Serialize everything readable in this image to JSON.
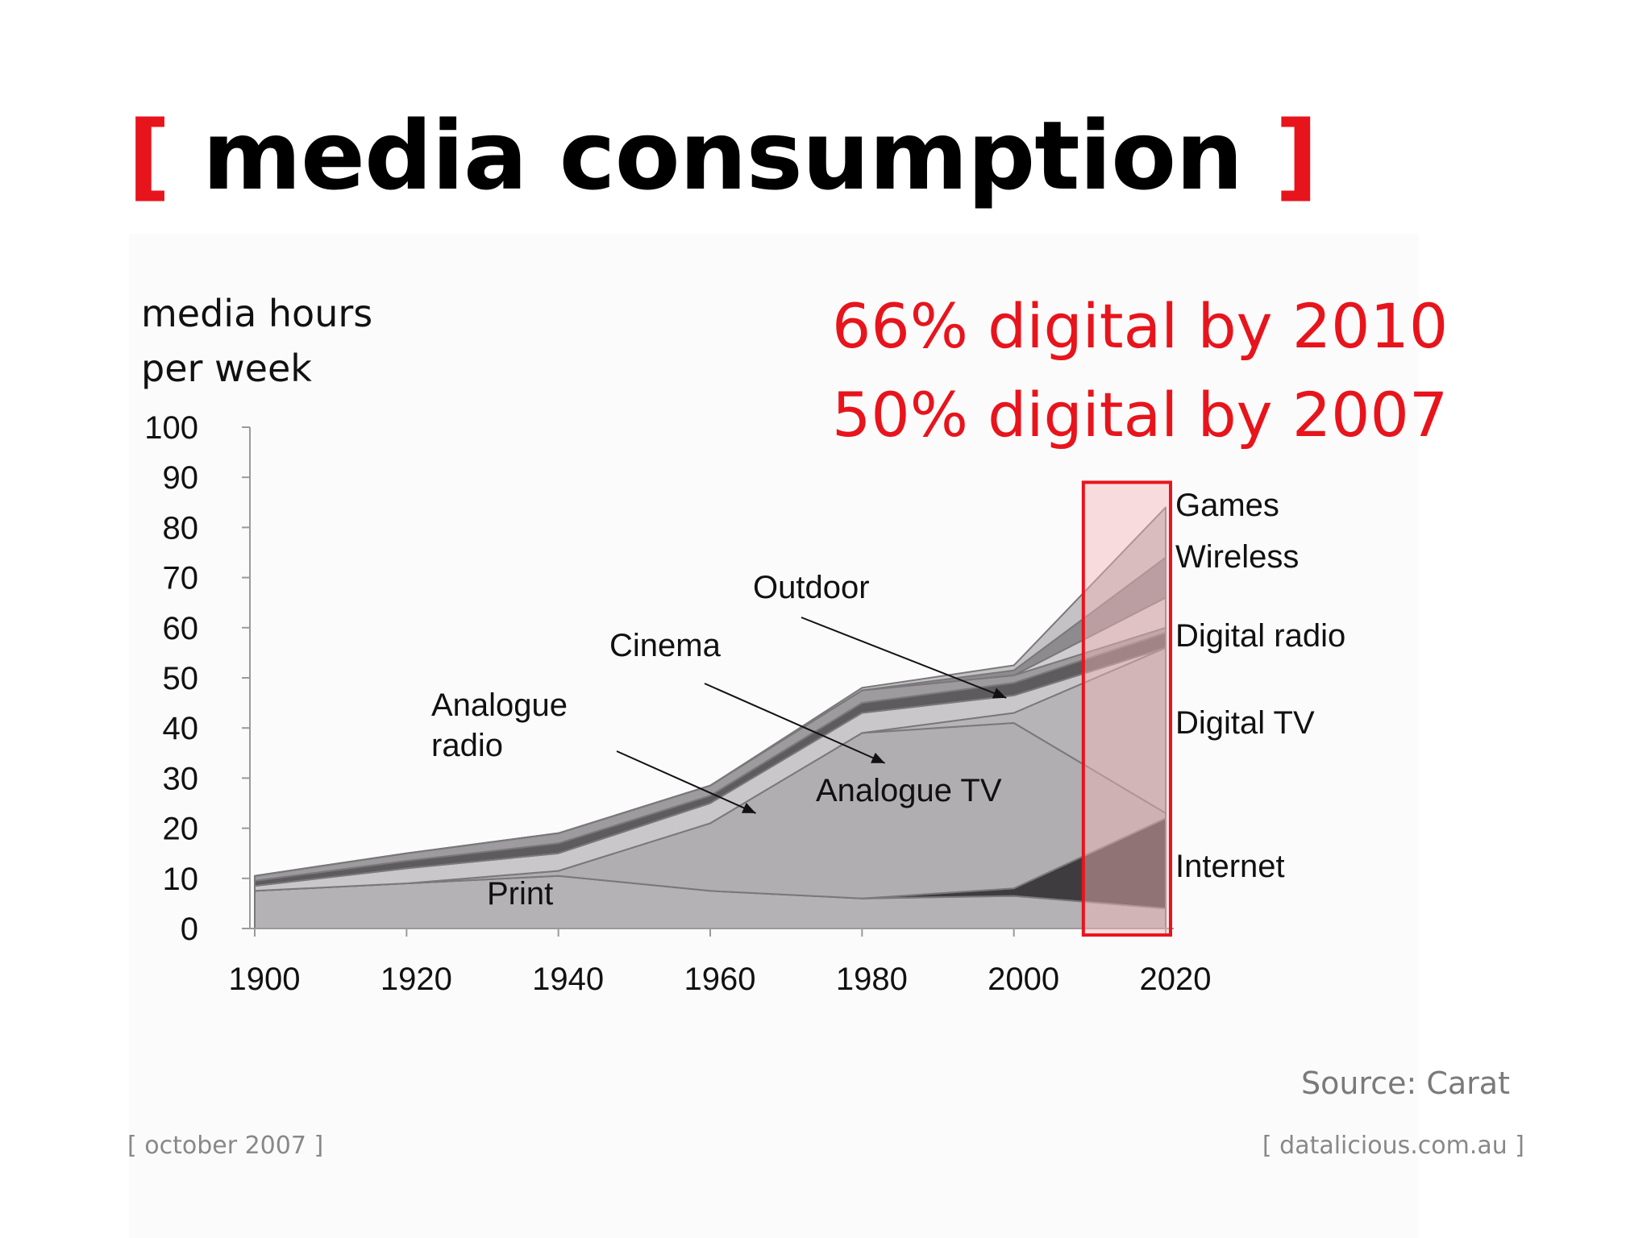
{
  "slide": {
    "title_open": "[",
    "title_text": " media consumption ",
    "title_close": "]",
    "ylabel_line1": "media hours",
    "ylabel_line2": "per week",
    "headline_1": "66% digital by 2010",
    "headline_2": "50% digital by 2007",
    "source": "Source: Carat",
    "footer_left": "[ october 2007 ]",
    "footer_right": "[ datalicious.com.au ]"
  },
  "colors": {
    "accent_red": "#e8141c",
    "highlight_fill": "#f4b6b8",
    "print": "#b4b2b4",
    "analogue_tv": "#b0aeb0",
    "analogue_radio": "#c9c7c9",
    "cinema": "#5d5b5e",
    "outdoor": "#9d9b9e",
    "internet": "#3e3c3f",
    "digital_tv": "#b6b4b6",
    "digital_radio": "#cfcdcf",
    "wireless": "#8d8b8e",
    "games": "#c4c2c4",
    "edge": "#7a787b"
  },
  "chart_data": {
    "type": "area",
    "stacked": true,
    "ylabel": "media hours per week",
    "xlabel": "",
    "x": [
      1900,
      1920,
      1940,
      1960,
      1980,
      2000,
      2020
    ],
    "xticks": [
      "1900",
      "1920",
      "1940",
      "1960",
      "1980",
      "2000",
      "2020"
    ],
    "yticks": [
      "0",
      "10",
      "20",
      "30",
      "40",
      "50",
      "60",
      "70",
      "80",
      "90",
      "100"
    ],
    "ylim": [
      0,
      100
    ],
    "xlim": [
      1900,
      2020
    ],
    "grid": false,
    "series": [
      {
        "name": "Print",
        "values": [
          7.5,
          9,
          10.5,
          7.5,
          6,
          6.5,
          4
        ]
      },
      {
        "name": "Internet",
        "values": [
          0,
          0,
          0,
          0,
          0,
          1.5,
          18
        ]
      },
      {
        "name": "Analogue TV",
        "values": [
          0,
          0,
          1,
          13.5,
          33,
          33,
          1
        ]
      },
      {
        "name": "Digital TV",
        "values": [
          0,
          0,
          0,
          0,
          0,
          2,
          33
        ]
      },
      {
        "name": "Analogue radio",
        "values": [
          1,
          3,
          3.5,
          4,
          4,
          3.5,
          0
        ]
      },
      {
        "name": "Cinema",
        "values": [
          1,
          1.5,
          2,
          1.5,
          2,
          2.5,
          3
        ]
      },
      {
        "name": "Outdoor",
        "values": [
          1,
          1.5,
          2,
          2,
          2.5,
          1.5,
          1
        ]
      },
      {
        "name": "Digital radio",
        "values": [
          0,
          0,
          0,
          0,
          0,
          0,
          6
        ]
      },
      {
        "name": "Wireless",
        "values": [
          0,
          0,
          0,
          0,
          0,
          1,
          8
        ]
      },
      {
        "name": "Games",
        "values": [
          0,
          0,
          0,
          0,
          0.5,
          1,
          10
        ]
      }
    ],
    "highlight_range": [
      2010,
      2020
    ],
    "annotations": [
      {
        "name": "Analogue radio",
        "text_lines": [
          "Analogue",
          "radio"
        ],
        "arrow_to": [
          1966,
          23
        ]
      },
      {
        "name": "Cinema",
        "text_lines": [
          "Cinema"
        ],
        "arrow_to": [
          1983,
          33
        ]
      },
      {
        "name": "Outdoor",
        "text_lines": [
          "Outdoor"
        ],
        "arrow_to": [
          1999,
          46
        ]
      },
      {
        "name": "Analogue TV",
        "text_lines": [
          "Analogue TV"
        ],
        "arrow_to": null
      },
      {
        "name": "Print",
        "text_lines": [
          "Print"
        ],
        "arrow_to": null
      }
    ],
    "right_labels": [
      "Games",
      "Wireless",
      "Digital radio",
      "Digital TV",
      "Internet"
    ]
  }
}
